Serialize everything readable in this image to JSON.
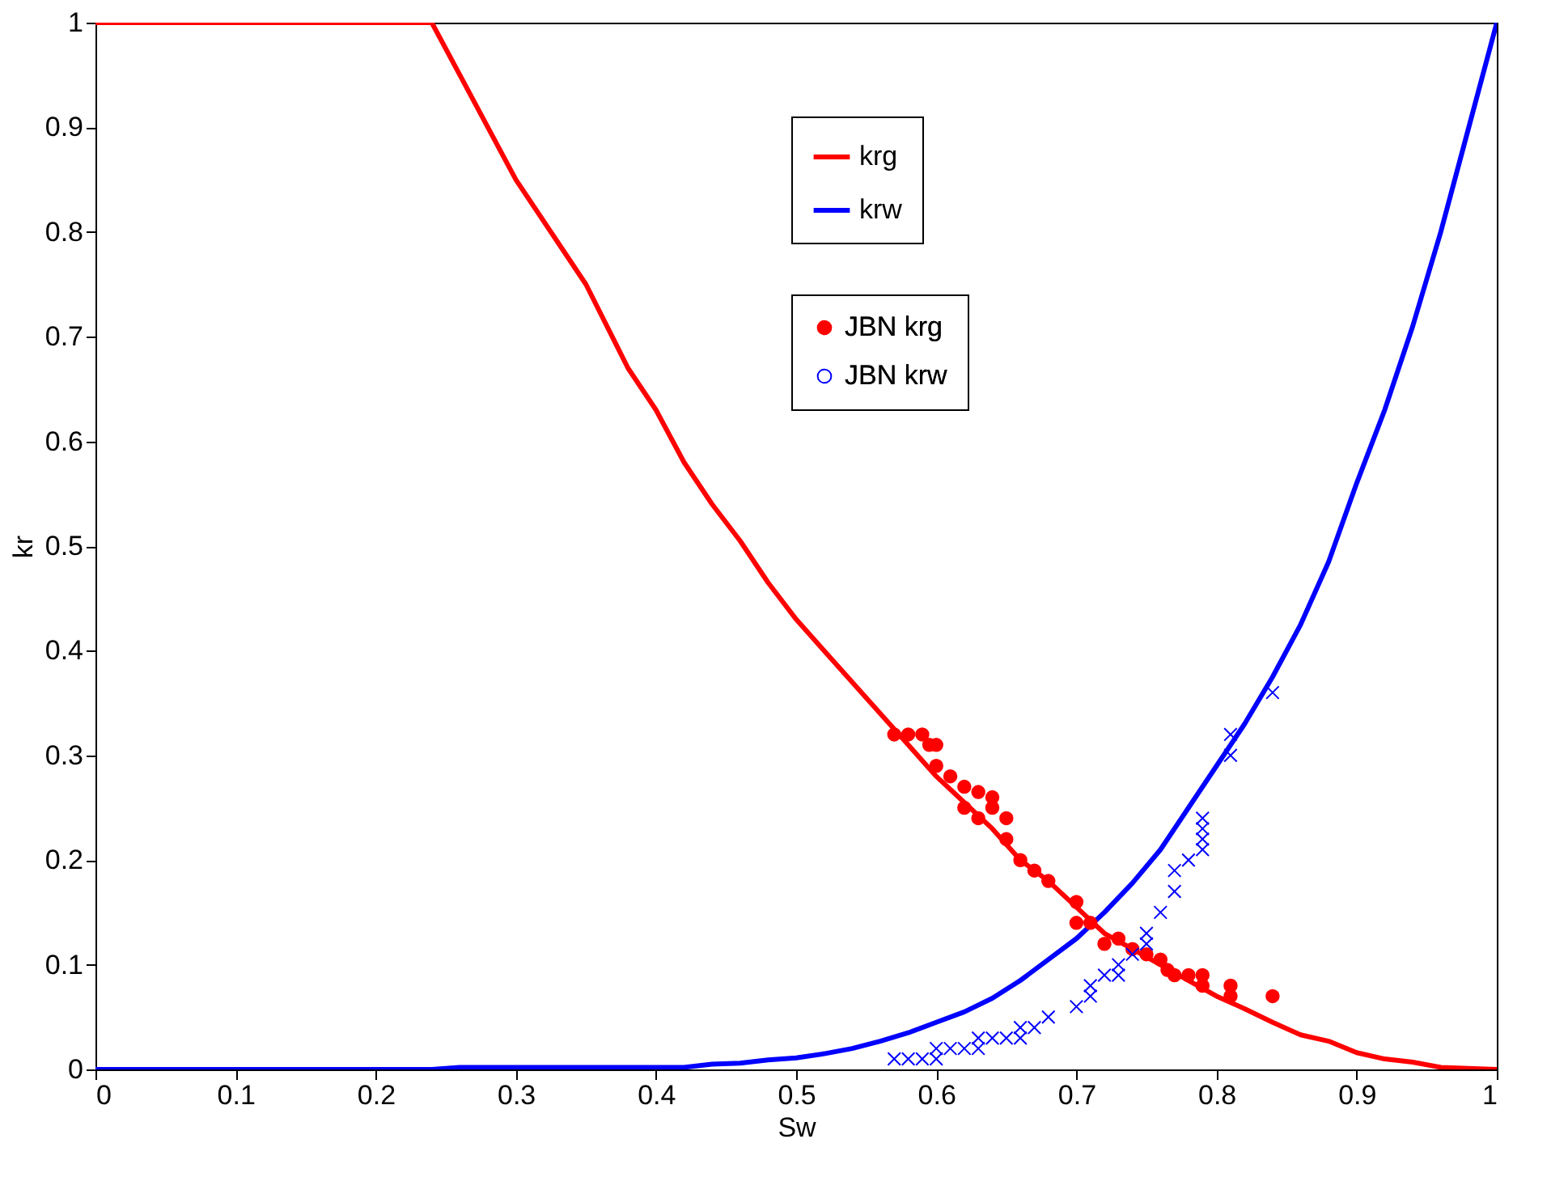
{
  "chart_data": {
    "type": "line",
    "xlabel": "Sw",
    "ylabel": "kr",
    "xlim": [
      0,
      1
    ],
    "ylim": [
      0,
      1
    ],
    "xticks": [
      0,
      0.1,
      0.2,
      0.3,
      0.4,
      0.5,
      0.6,
      0.7,
      0.8,
      0.9,
      1
    ],
    "yticks": [
      0,
      0.1,
      0.2,
      0.3,
      0.4,
      0.5,
      0.6,
      0.7,
      0.8,
      0.9,
      1
    ],
    "grid": false,
    "legend": "top right",
    "series": [
      {
        "name": "krg",
        "marker": "none",
        "line_style": "solid",
        "color": "#ff0000",
        "x": [
          0,
          0.24,
          0.26,
          0.3,
          0.35,
          0.38,
          0.4,
          0.42,
          0.44,
          0.46,
          0.48,
          0.5,
          0.52,
          0.54,
          0.56,
          0.58,
          0.6,
          0.62,
          0.64,
          0.66,
          0.68,
          0.7,
          0.72,
          0.74,
          0.76,
          0.78,
          0.8,
          0.82,
          0.84,
          0.86,
          0.88,
          0.9,
          0.92,
          0.94,
          0.96,
          0.98,
          1
        ],
        "values": [
          1,
          1,
          0.95,
          0.85,
          0.75,
          0.67,
          0.63,
          0.58,
          0.54,
          0.505,
          0.465,
          0.43,
          0.4,
          0.37,
          0.34,
          0.31,
          0.28,
          0.255,
          0.23,
          0.2,
          0.18,
          0.155,
          0.13,
          0.115,
          0.1,
          0.085,
          0.07,
          0.058,
          0.045,
          0.033,
          0.027,
          0.016,
          0.01,
          0.007,
          0.002,
          0.001,
          0
        ]
      },
      {
        "name": "JBN krg",
        "type": "scatter",
        "marker": "circle",
        "color": "#ff0000",
        "x": [
          0.57,
          0.58,
          0.59,
          0.595,
          0.6,
          0.6,
          0.61,
          0.62,
          0.62,
          0.63,
          0.63,
          0.64,
          0.64,
          0.65,
          0.65,
          0.66,
          0.67,
          0.68,
          0.7,
          0.7,
          0.71,
          0.72,
          0.73,
          0.74,
          0.75,
          0.76,
          0.765,
          0.77,
          0.78,
          0.79,
          0.79,
          0.81,
          0.81,
          0.84
        ],
        "values": [
          0.32,
          0.32,
          0.32,
          0.31,
          0.31,
          0.29,
          0.28,
          0.27,
          0.25,
          0.265,
          0.24,
          0.26,
          0.25,
          0.24,
          0.22,
          0.2,
          0.19,
          0.18,
          0.16,
          0.14,
          0.14,
          0.12,
          0.125,
          0.115,
          0.11,
          0.105,
          0.095,
          0.09,
          0.09,
          0.09,
          0.08,
          0.08,
          0.07,
          0.07
        ]
      },
      {
        "name": "krw",
        "marker": "none",
        "line_style": "solid",
        "color": "#0000ff",
        "x": [
          0,
          0.24,
          0.26,
          0.42,
          0.44,
          0.46,
          0.48,
          0.5,
          0.52,
          0.54,
          0.56,
          0.58,
          0.6,
          0.62,
          0.64,
          0.66,
          0.68,
          0.7,
          0.72,
          0.74,
          0.76,
          0.78,
          0.8,
          0.82,
          0.84,
          0.86,
          0.88,
          0.9,
          0.92,
          0.94,
          0.96,
          0.98,
          1
        ],
        "values": [
          0,
          0,
          0.002,
          0.002,
          0.005,
          0.006,
          0.009,
          0.011,
          0.015,
          0.02,
          0.027,
          0.035,
          0.045,
          0.055,
          0.068,
          0.085,
          0.105,
          0.125,
          0.15,
          0.178,
          0.21,
          0.25,
          0.29,
          0.33,
          0.375,
          0.425,
          0.485,
          0.56,
          0.63,
          0.71,
          0.8,
          0.9,
          1
        ]
      },
      {
        "name": "JBN krw",
        "type": "scatter",
        "marker": "cross",
        "color": "#0000ff",
        "x": [
          0.57,
          0.58,
          0.59,
          0.6,
          0.6,
          0.61,
          0.62,
          0.63,
          0.63,
          0.64,
          0.65,
          0.66,
          0.66,
          0.67,
          0.68,
          0.7,
          0.71,
          0.71,
          0.72,
          0.73,
          0.73,
          0.74,
          0.75,
          0.75,
          0.76,
          0.77,
          0.77,
          0.78,
          0.79,
          0.79,
          0.79,
          0.79,
          0.81,
          0.81,
          0.84
        ],
        "values": [
          0.01,
          0.01,
          0.01,
          0.01,
          0.02,
          0.02,
          0.02,
          0.02,
          0.03,
          0.03,
          0.03,
          0.03,
          0.04,
          0.04,
          0.05,
          0.06,
          0.07,
          0.08,
          0.09,
          0.09,
          0.1,
          0.11,
          0.12,
          0.13,
          0.15,
          0.17,
          0.19,
          0.2,
          0.21,
          0.22,
          0.23,
          0.24,
          0.3,
          0.32,
          0.36
        ]
      }
    ]
  }
}
